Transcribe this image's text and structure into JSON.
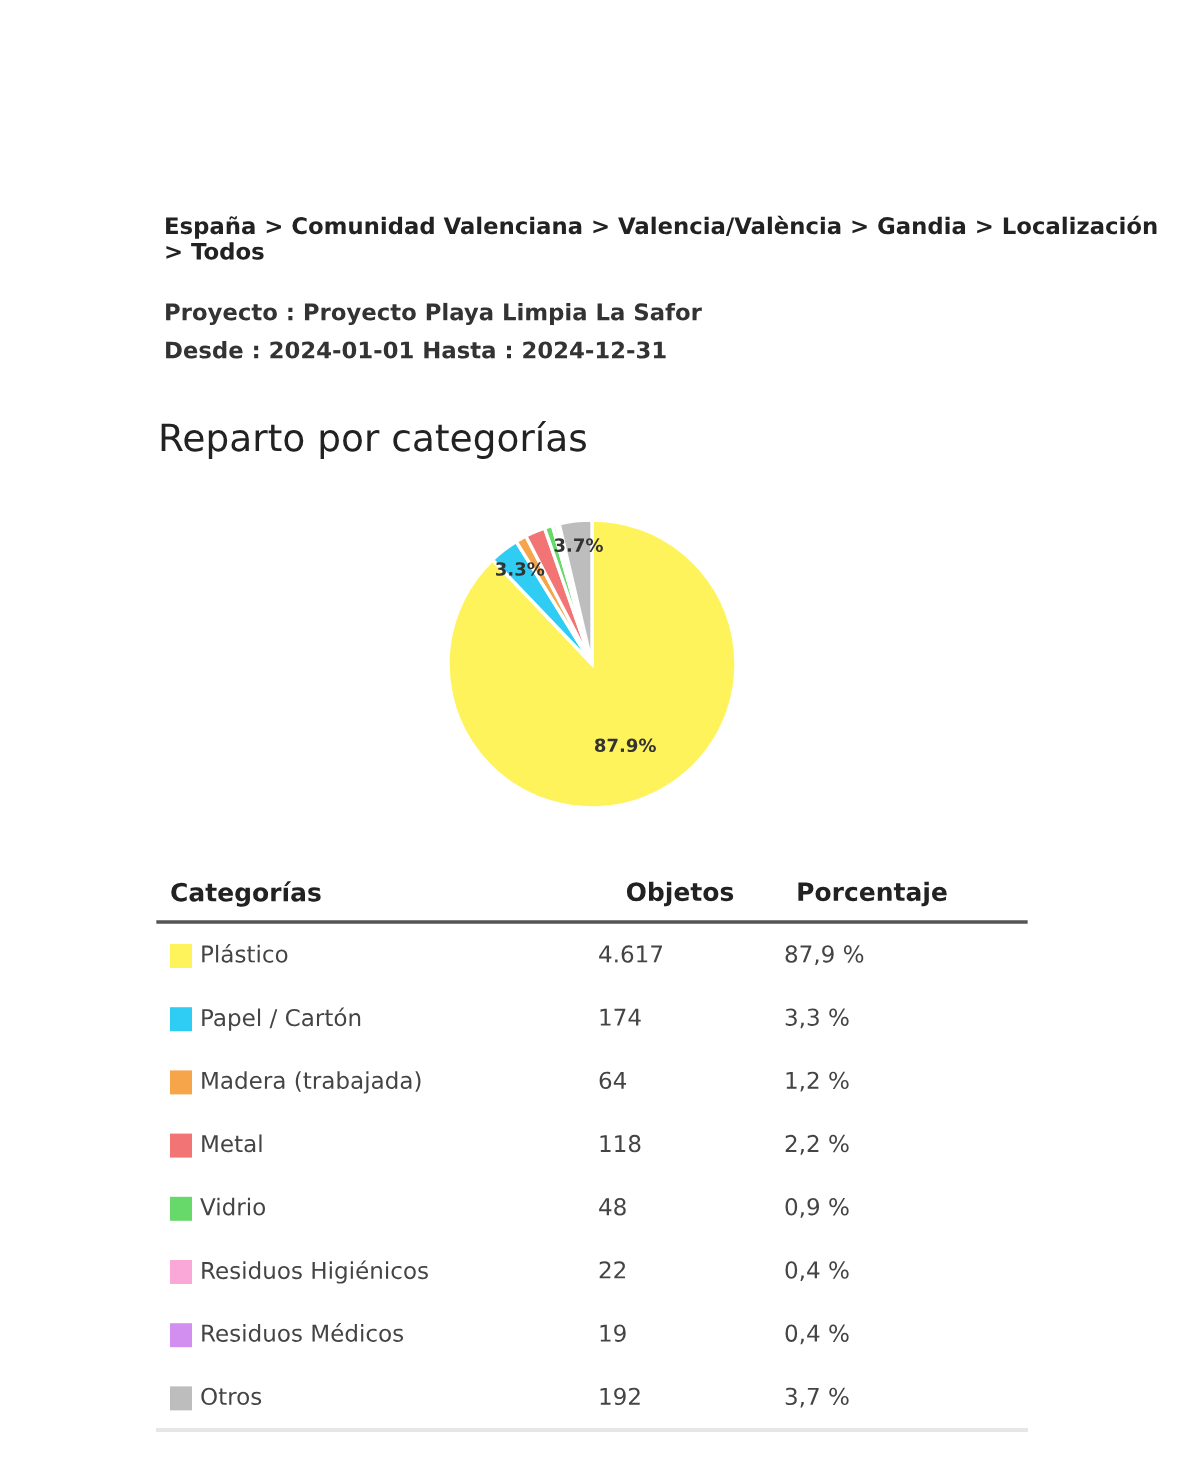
{
  "chart_data": {
    "type": "pie",
    "title": "Reparto por categorías",
    "subtitle": "España > Comunidad Valenciana > Valencia/València > Gandia > Localización > Todos",
    "categories": [
      "Plástico",
      "Papel / Cartón",
      "Madera (trabajada)",
      "Metal",
      "Vidrio",
      "Residuos Higiénicos",
      "Residuos Médicos",
      "Otros"
    ],
    "values": [
      4617,
      174,
      64,
      118,
      48,
      22,
      19,
      192
    ],
    "colors": [
      "#fff35c",
      "#2fcdf3",
      "#f7a54a",
      "#f27474",
      "#66d96a",
      "#f9a8d8",
      "#d38ff0",
      "#bdbdbd"
    ],
    "value_labels": [
      "4.617",
      "174",
      "64",
      "118",
      "48",
      "22",
      "19",
      "192"
    ],
    "legend": "bottom",
    "annotations": [
      "Proyecto : Proyecto Playa Limpia La Safor",
      "Desde : 2024-01-01 Hasta : 2024-12-31",
      "Categorías",
      "Objetos",
      "Porcentaje",
      {
        "text": "87,9 %",
        "x": "Plástico"
      },
      {
        "text": "3,3 %",
        "x": "Papel / Cartón"
      },
      {
        "text": "1,2 %",
        "x": "Madera (trabajada)"
      },
      {
        "text": "2,2 %",
        "x": "Metal"
      },
      {
        "text": "0,9 %",
        "x": "Vidrio"
      },
      {
        "text": "0,4 %",
        "x": "Residuos Higiénicos"
      },
      {
        "text": "0,4 %",
        "x": "Residuos Médicos"
      },
      {
        "text": "3,7 %",
        "x": "Otros"
      },
      {
        "text": "87.9%",
        "x": "Plástico"
      },
      {
        "text": "3.3%",
        "x": "Papel / Cartón"
      },
      {
        "text": "3.7%",
        "x": "Otros"
      }
    ]
  }
}
